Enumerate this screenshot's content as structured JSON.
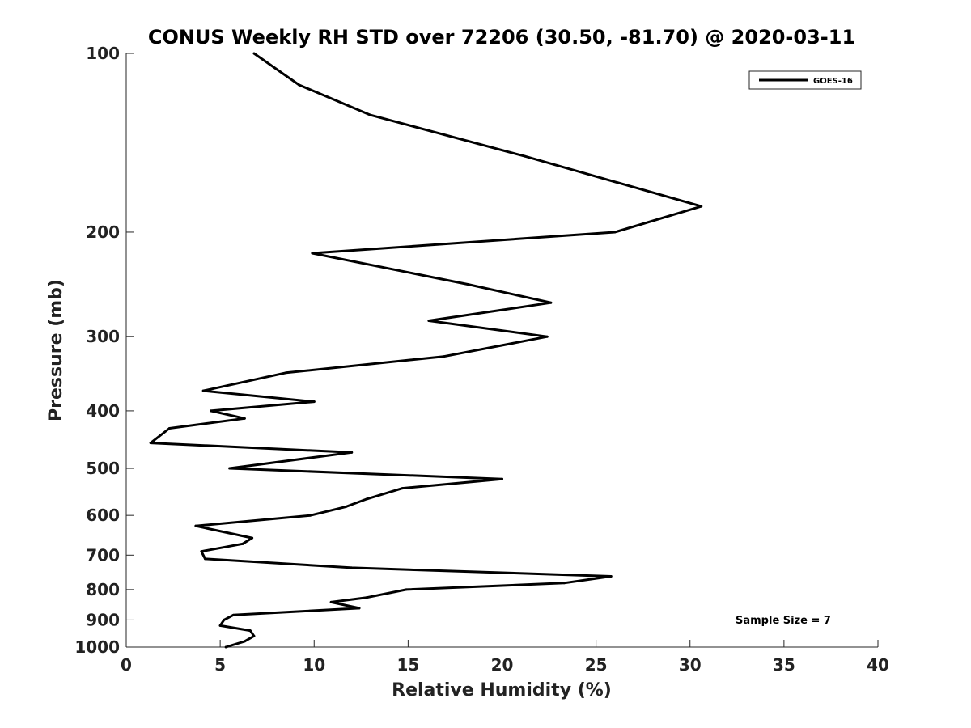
{
  "chart_data": {
    "type": "line",
    "title": "CONUS Weekly RH STD over 72206 (30.50, -81.70) @ 2020-03-11",
    "xlabel": "Relative Humidity (%)",
    "ylabel": "Pressure (mb)",
    "xlim": [
      0,
      40
    ],
    "ylim": [
      1000,
      100
    ],
    "y_scale": "log",
    "x_ticks": [
      0,
      5,
      10,
      15,
      20,
      25,
      30,
      35,
      40
    ],
    "y_ticks": [
      100,
      200,
      300,
      400,
      500,
      600,
      700,
      800,
      900,
      1000
    ],
    "x_tick_labels": [
      "0",
      "5",
      "10",
      "15",
      "20",
      "25",
      "30",
      "35",
      "40"
    ],
    "y_tick_labels": [
      "100",
      "200",
      "300",
      "400",
      "500",
      "600",
      "700",
      "800",
      "900",
      "1000"
    ],
    "grid": false,
    "legend_position": "top-right",
    "annotation": "Sample Size = 7",
    "series": [
      {
        "name": "GOES-16",
        "color": "#000000",
        "x": [
          6.8,
          9.2,
          13.0,
          21.2,
          30.6,
          26.0,
          9.9,
          18.2,
          22.6,
          16.1,
          22.4,
          16.9,
          8.5,
          4.1,
          10.0,
          4.5,
          6.3,
          2.3,
          1.3,
          12.0,
          5.5,
          20.0,
          14.7,
          12.8,
          11.7,
          9.8,
          3.7,
          6.7,
          6.2,
          4.0,
          4.2,
          12.0,
          25.8,
          23.3,
          14.9,
          12.8,
          10.9,
          12.4,
          5.7,
          5.2,
          5.0,
          6.6,
          6.8,
          6.3,
          5.3
        ],
        "y": [
          100,
          113,
          127,
          149,
          181,
          200,
          217,
          245,
          263,
          282,
          300,
          324,
          345,
          370,
          386,
          400,
          412,
          428,
          453,
          470,
          500,
          521,
          540,
          563,
          580,
          600,
          625,
          655,
          670,
          690,
          710,
          735,
          760,
          780,
          800,
          825,
          840,
          860,
          883,
          900,
          920,
          938,
          958,
          978,
          1000
        ]
      }
    ]
  }
}
